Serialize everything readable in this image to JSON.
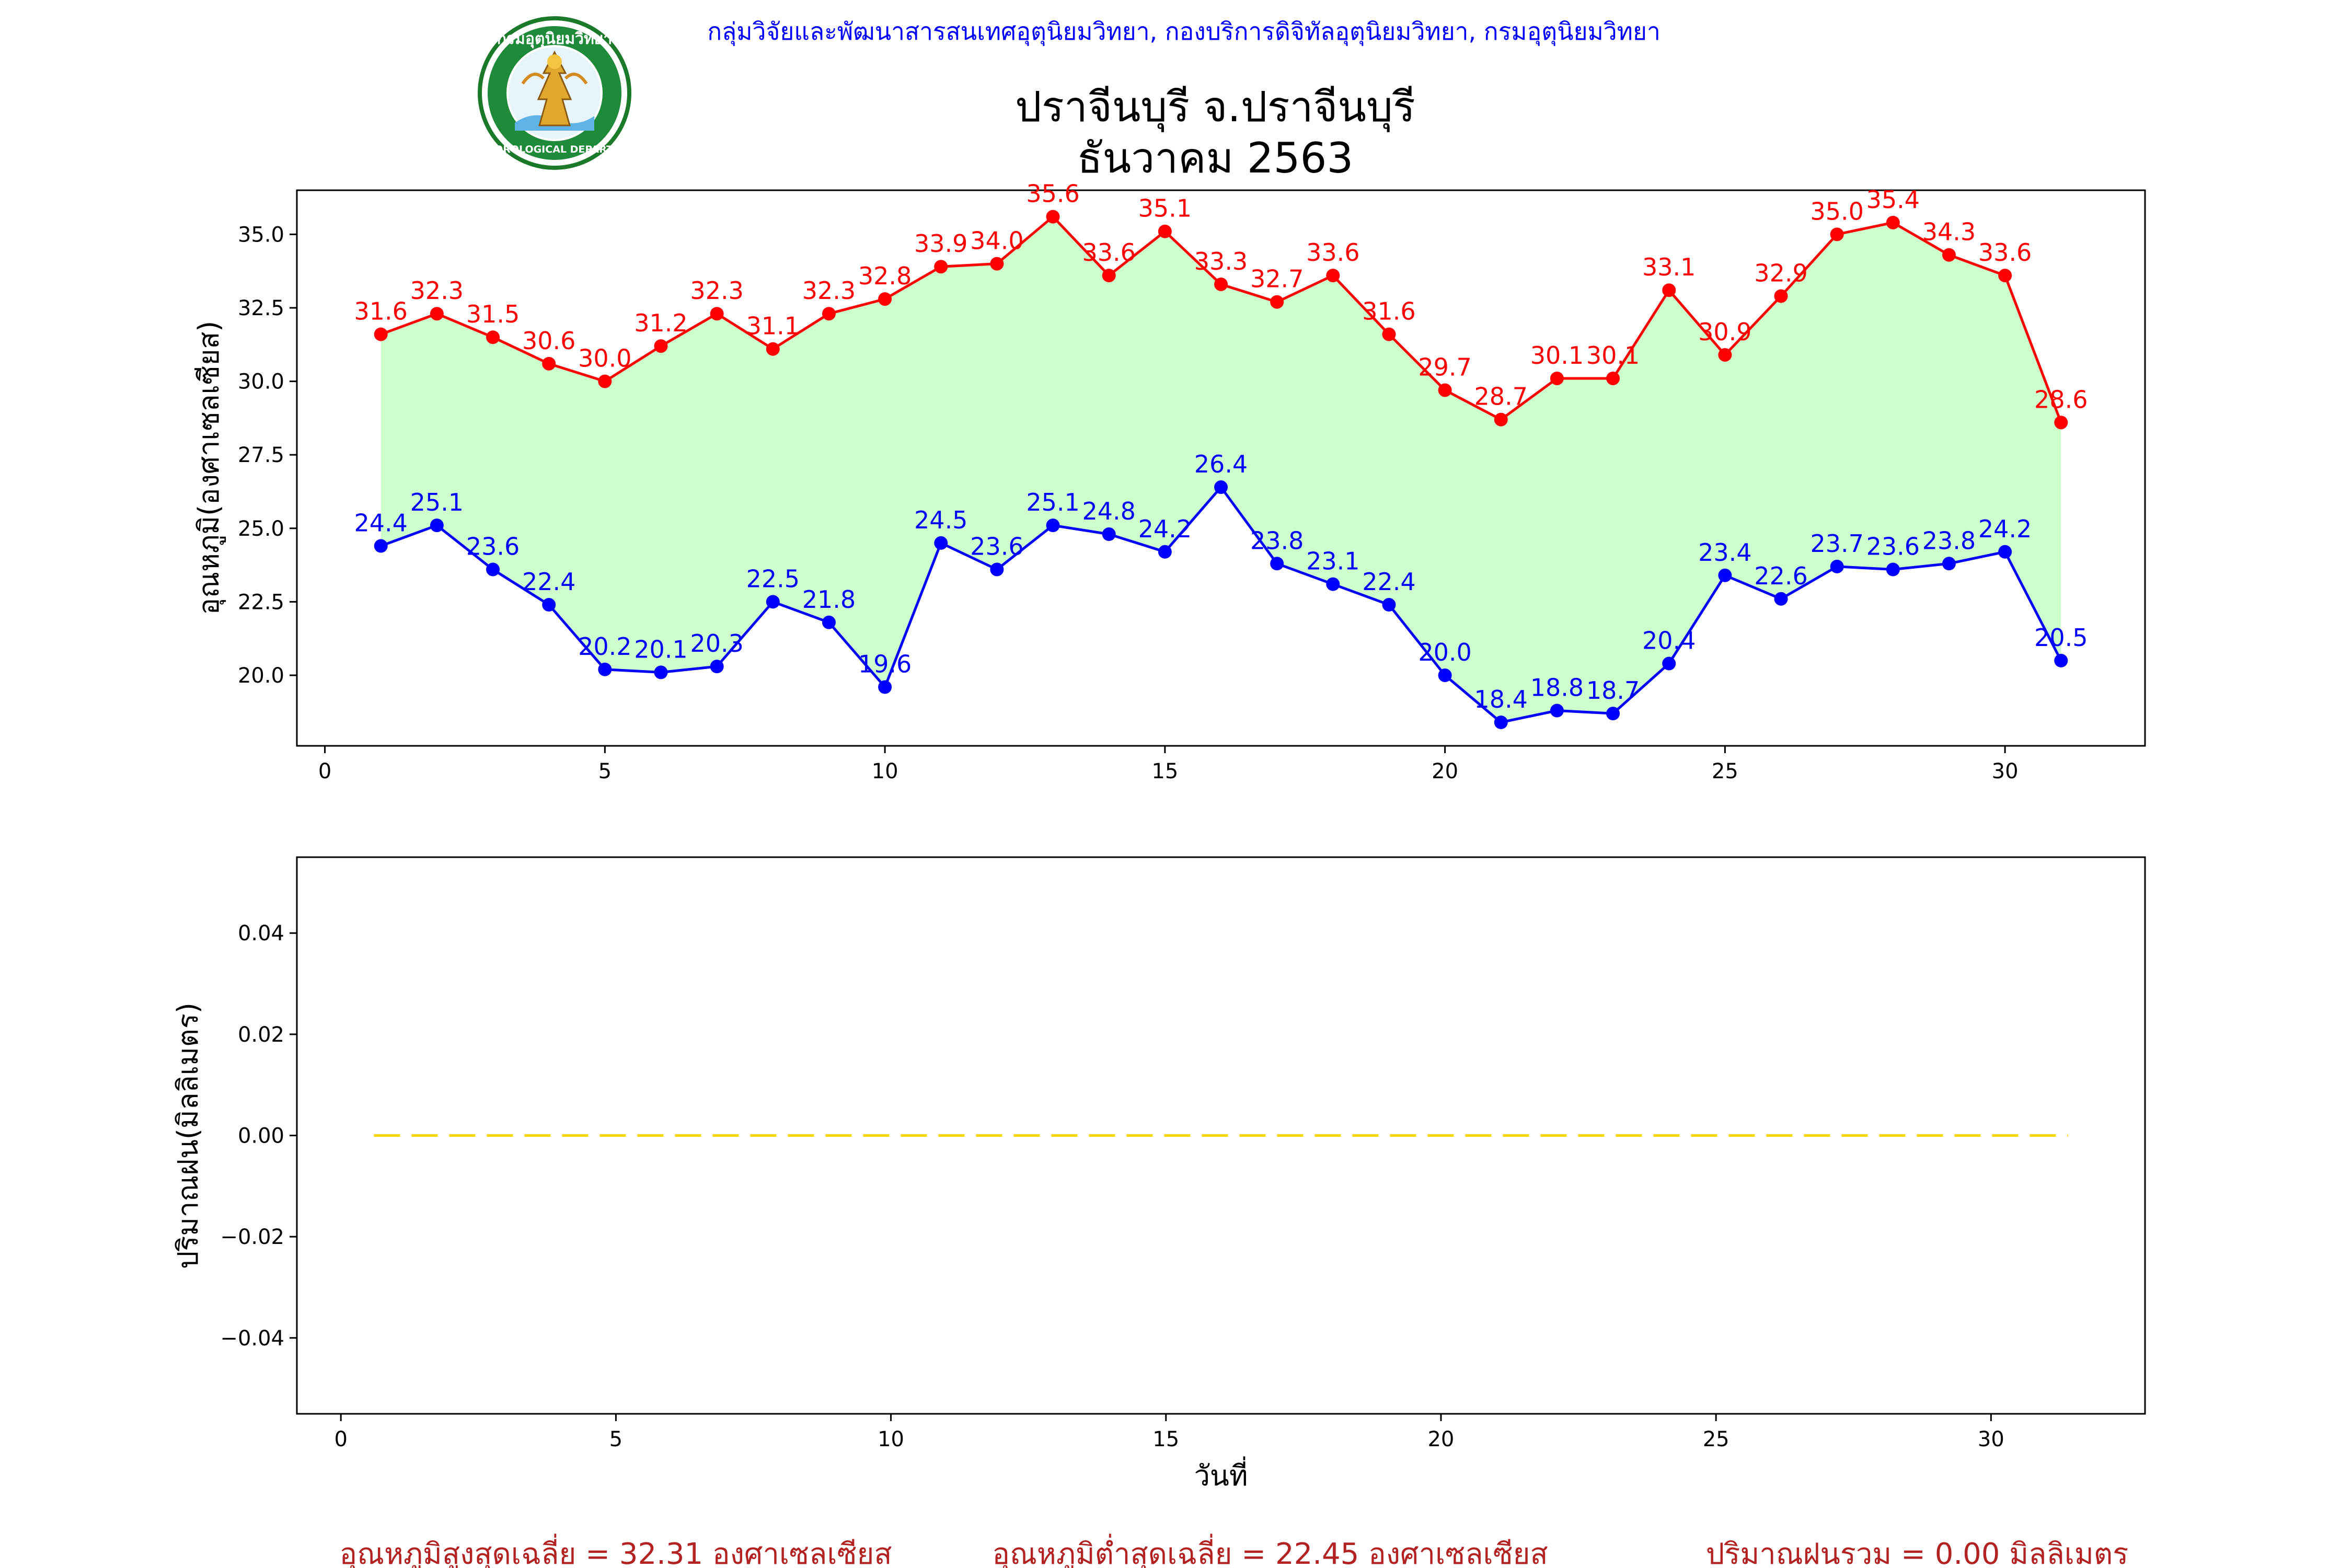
{
  "header": {
    "organization": "กลุ่มวิจัยและพัฒนาสารสนเทศอุตุนิยมวิทยา, กองบริการดิจิทัลอุตุนิยมวิทยา, กรมอุตุนิยมวิทยา",
    "title_line1": "ปราจีนบุรี จ.ปราจีนบุรี",
    "title_line2": "ธันวาคม 2563",
    "logo_top_text": "กรมอุตุนิยมวิทยา",
    "logo_bottom_text": "METEOROLOGICAL DEPARTMENT"
  },
  "colors": {
    "max_line": "#ff0000",
    "min_line": "#0000ff",
    "fill": "#ccffcc",
    "rain_line": "#ffd700",
    "footer": "#b22222"
  },
  "footer": {
    "avg_max": "อุณหภูมิสูงสุดเฉลี่ย = 32.31 องศาเซลเซียส",
    "avg_min": "อุณหภูมิต่ำสุดเฉลี่ย = 22.45 องศาเซลเซียส",
    "total_rain": "ปริมาณฝนรวม = 0.00 มิลลิเมตร"
  },
  "chart_data": [
    {
      "type": "line",
      "title": "ปราจีนบุรี จ.ปราจีนบุรี ธันวาคม 2563",
      "xlabel": "",
      "ylabel": "อุณหภูมิ(องศาเซลเซียส)",
      "xlim": [
        -0.5,
        32.5
      ],
      "ylim": [
        17.6,
        36.5
      ],
      "xticks": [
        0,
        5,
        10,
        15,
        20,
        25,
        30
      ],
      "yticks": [
        20.0,
        22.5,
        25.0,
        27.5,
        30.0,
        32.5,
        35.0
      ],
      "ytick_labels": [
        "20.0",
        "22.5",
        "25.0",
        "27.5",
        "30.0",
        "32.5",
        "35.0"
      ],
      "fill_between": true,
      "x": [
        1,
        2,
        3,
        4,
        5,
        6,
        7,
        8,
        9,
        10,
        11,
        12,
        13,
        14,
        15,
        16,
        17,
        18,
        19,
        20,
        21,
        22,
        23,
        24,
        25,
        26,
        27,
        28,
        29,
        30,
        31
      ],
      "series": [
        {
          "color": "#ff0000",
          "values": [
            31.6,
            32.3,
            31.5,
            30.6,
            30.0,
            31.2,
            32.3,
            31.1,
            32.3,
            32.8,
            33.9,
            34.0,
            35.6,
            33.6,
            35.1,
            33.3,
            32.7,
            33.6,
            31.6,
            29.7,
            28.7,
            30.1,
            30.1,
            33.1,
            30.9,
            32.9,
            35.0,
            35.4,
            34.3,
            33.6,
            28.6
          ],
          "labels": [
            "31.6",
            "32.3",
            "31.5",
            "30.6",
            "30.0",
            "31.2",
            "32.3",
            "31.1",
            "32.3",
            "32.8",
            "33.9",
            "34.0",
            "35.6",
            "33.6",
            "35.1",
            "33.3",
            "32.7",
            "33.6",
            "31.6",
            "29.7",
            "28.7",
            "30.1",
            "30.1",
            "33.1",
            "30.9",
            "32.9",
            "35.0",
            "35.4",
            "34.3",
            "33.6",
            "28.6"
          ]
        },
        {
          "color": "#0000ff",
          "values": [
            24.4,
            25.1,
            23.6,
            22.4,
            20.2,
            20.1,
            20.3,
            22.5,
            21.8,
            19.6,
            24.5,
            23.6,
            25.1,
            24.8,
            24.2,
            26.4,
            23.8,
            23.1,
            22.4,
            20.0,
            18.4,
            18.8,
            18.7,
            20.4,
            23.4,
            22.6,
            23.7,
            23.6,
            23.8,
            24.2,
            20.5
          ],
          "labels": [
            "24.4",
            "25.1",
            "23.6",
            "22.4",
            "20.2",
            "20.1",
            "20.3",
            "22.5",
            "21.8",
            "19.6",
            "24.5",
            "23.6",
            "25.1",
            "24.8",
            "24.2",
            "26.4",
            "23.8",
            "23.1",
            "22.4",
            "20.0",
            "18.4",
            "18.8",
            "18.7",
            "20.4",
            "23.4",
            "22.6",
            "23.7",
            "23.6",
            "23.8",
            "24.2",
            "20.5"
          ]
        }
      ]
    },
    {
      "type": "line",
      "title": "",
      "xlabel": "วันที่",
      "ylabel": "ปริมาณฝน(มิลลิเมตร)",
      "xlim": [
        -0.8,
        32.8
      ],
      "ylim": [
        -0.055,
        0.055
      ],
      "xticks": [
        0,
        5,
        10,
        15,
        20,
        25,
        30
      ],
      "yticks": [
        -0.04,
        -0.02,
        0.0,
        0.02,
        0.04
      ],
      "ytick_labels": [
        "−0.04",
        "−0.02",
        "0.00",
        "0.02",
        "0.04"
      ],
      "x": [
        0.6,
        31.4
      ],
      "series": [
        {
          "color": "#ffd700",
          "style": "dashed",
          "values": [
            0.0,
            0.0
          ]
        }
      ]
    }
  ]
}
